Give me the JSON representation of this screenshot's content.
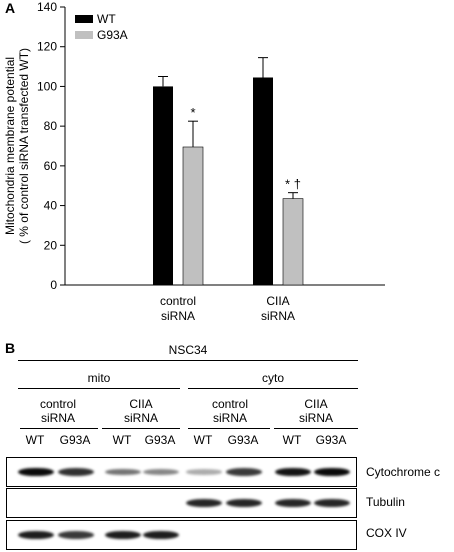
{
  "panel_a_label": "A",
  "panel_b_label": "B",
  "chart_data": {
    "type": "bar",
    "title": "",
    "ylabel_line1": "Mitochondria membrane potential",
    "ylabel_line2": "( % of control siRNA  transfected WT)",
    "xlabel": "",
    "ylim": [
      0,
      140
    ],
    "yticks": [
      0,
      20,
      40,
      60,
      80,
      100,
      120,
      140
    ],
    "categories": [
      {
        "line1": "control",
        "line2": "siRNA"
      },
      {
        "line1": "CIIA",
        "line2": "siRNA"
      }
    ],
    "series": [
      {
        "name": "WT",
        "color": "#000000",
        "values": [
          100,
          104.5
        ],
        "errors": [
          5,
          10
        ]
      },
      {
        "name": "G93A",
        "color": "#c0c0c0",
        "values": [
          69.5,
          43.5
        ],
        "errors": [
          13,
          3
        ]
      }
    ],
    "annotations": [
      {
        "text": "*",
        "category": 0,
        "series": 1
      },
      {
        "text": "* †",
        "category": 1,
        "series": 1
      }
    ],
    "legend_position": "top-left",
    "grid": false
  },
  "western_blot": {
    "cell_line": "NSC34",
    "fractions": [
      "mito",
      "cyto"
    ],
    "treatments": [
      {
        "line1": "control",
        "line2": "siRNA"
      },
      {
        "line1": "CIIA",
        "line2": "siRNA"
      },
      {
        "line1": "control",
        "line2": "siRNA"
      },
      {
        "line1": "CIIA",
        "line2": "siRNA"
      }
    ],
    "lanes": [
      "WT",
      "G93A",
      "WT",
      "G93A",
      "WT",
      "G93A",
      "WT",
      "G93A"
    ],
    "blots": [
      {
        "label": "Cytochrome c",
        "intensities": [
          0.95,
          0.75,
          0.4,
          0.3,
          0.1,
          0.7,
          0.9,
          0.95
        ]
      },
      {
        "label": "Tubulin",
        "intensities": [
          0,
          0,
          0,
          0,
          0.8,
          0.8,
          0.8,
          0.8
        ]
      },
      {
        "label": "COX IV",
        "intensities": [
          0.85,
          0.7,
          0.85,
          0.85,
          0,
          0,
          0,
          0
        ]
      }
    ]
  }
}
